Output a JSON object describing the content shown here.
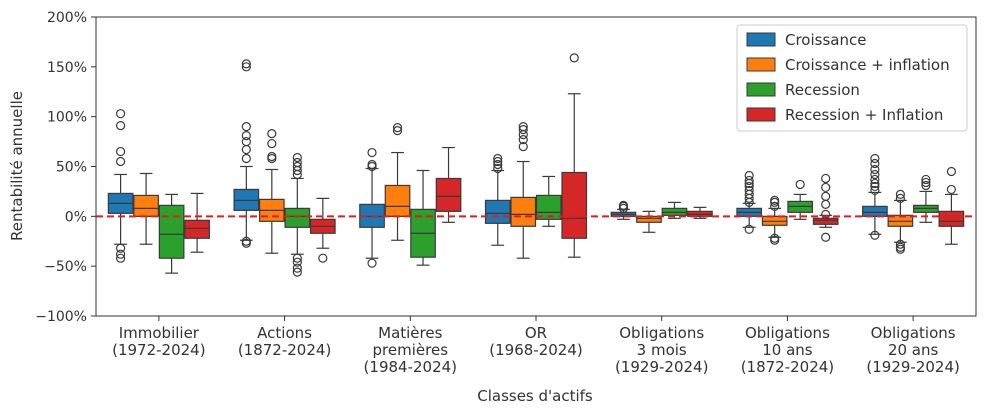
{
  "chart_data": {
    "type": "boxplot",
    "xlabel": "Classes d'actifs",
    "ylabel": "Rentabilité annuelle",
    "ylim": [
      -100,
      200
    ],
    "y_ticks": [
      -100,
      -50,
      0,
      50,
      100,
      150,
      200
    ],
    "y_tick_labels": [
      "−100%",
      "−50%",
      "0%",
      "50%",
      "100%",
      "150%",
      "200%"
    ],
    "reference_line": {
      "y": 0,
      "color": "#e41a1c",
      "style": "dashed"
    },
    "legend_position": "top-right",
    "categories": [
      {
        "lines": [
          "Immobilier",
          "(1972-2024)"
        ]
      },
      {
        "lines": [
          "Actions",
          "(1872-2024)"
        ]
      },
      {
        "lines": [
          "Matières",
          "premières",
          "(1984-2024)"
        ]
      },
      {
        "lines": [
          "OR",
          "(1968-2024)"
        ]
      },
      {
        "lines": [
          "Obligations",
          "3 mois",
          "(1929-2024)"
        ]
      },
      {
        "lines": [
          "Obligations",
          "10 ans",
          "(1872-2024)"
        ]
      },
      {
        "lines": [
          "Obligations",
          "20 ans",
          "(1929-2024)"
        ]
      }
    ],
    "series": [
      {
        "name": "Croissance",
        "color": "#1f77b4",
        "boxes": [
          {
            "whislo": -28,
            "q1": 3,
            "med": 13,
            "q3": 23,
            "whishi": 42,
            "fliers": [
              -32,
              -38,
              -42,
              55,
              65,
              91,
              103
            ]
          },
          {
            "whislo": -24,
            "q1": 6,
            "med": 16,
            "q3": 27,
            "whishi": 50,
            "fliers": [
              -25,
              -27,
              58,
              67,
              75,
              81,
              90,
              150,
              153
            ]
          },
          {
            "whislo": -42,
            "q1": -11,
            "med": 0,
            "q3": 12,
            "whishi": 48,
            "fliers": [
              -47,
              50,
              52,
              64
            ]
          },
          {
            "whislo": -29,
            "q1": -7,
            "med": 3,
            "q3": 16,
            "whishi": 46,
            "fliers": [
              48,
              52,
              55,
              58
            ]
          },
          {
            "whislo": -3,
            "q1": 0,
            "med": 2,
            "q3": 4,
            "whishi": 7,
            "fliers": [
              8,
              10,
              11
            ]
          },
          {
            "whislo": -11,
            "q1": 0,
            "med": 4,
            "q3": 8,
            "whishi": 13,
            "fliers": [
              -13,
              14,
              18,
              22,
              26,
              30,
              33,
              36,
              41
            ]
          },
          {
            "whislo": -18,
            "q1": 0,
            "med": 4,
            "q3": 10,
            "whishi": 24,
            "fliers": [
              -19,
              26,
              30,
              33,
              37,
              42,
              47,
              53,
              58
            ]
          }
        ]
      },
      {
        "name": "Croissance + inflation",
        "color": "#ff7f0e",
        "boxes": [
          {
            "whislo": -28,
            "q1": 0,
            "med": 8,
            "q3": 21,
            "whishi": 43,
            "fliers": []
          },
          {
            "whislo": -37,
            "q1": -5,
            "med": 6,
            "q3": 17,
            "whishi": 47,
            "fliers": [
              58,
              60,
              73,
              83
            ]
          },
          {
            "whislo": -24,
            "q1": 0,
            "med": 10,
            "q3": 31,
            "whishi": 64,
            "fliers": [
              86,
              89
            ]
          },
          {
            "whislo": -42,
            "q1": -10,
            "med": 2,
            "q3": 19,
            "whishi": 55,
            "fliers": [
              70,
              77,
              82,
              87,
              90
            ]
          },
          {
            "whislo": -16,
            "q1": -6,
            "med": -2,
            "q3": 0,
            "whishi": 5,
            "fliers": []
          },
          {
            "whislo": -21,
            "q1": -9,
            "med": -5,
            "q3": 0,
            "whishi": 8,
            "fliers": [
              -22,
              -24,
              10,
              14,
              16
            ]
          },
          {
            "whislo": -26,
            "q1": -10,
            "med": -5,
            "q3": 1,
            "whishi": 16,
            "fliers": [
              -28,
              -31,
              -33,
              18,
              22
            ]
          }
        ]
      },
      {
        "name": "Recession",
        "color": "#2ca02c",
        "boxes": [
          {
            "whislo": -57,
            "q1": -42,
            "med": -18,
            "q3": 11,
            "whishi": 22,
            "fliers": []
          },
          {
            "whislo": -38,
            "q1": -11,
            "med": 0,
            "q3": 8,
            "whishi": 38,
            "fliers": [
              -42,
              -46,
              -52,
              -56,
              42,
              46,
              50,
              54,
              59
            ]
          },
          {
            "whislo": -49,
            "q1": -41,
            "med": -17,
            "q3": 7,
            "whishi": 46,
            "fliers": []
          },
          {
            "whislo": -10,
            "q1": -3,
            "med": 4,
            "q3": 21,
            "whishi": 40,
            "fliers": []
          },
          {
            "whislo": -2,
            "q1": 1,
            "med": 4,
            "q3": 8,
            "whishi": 14,
            "fliers": []
          },
          {
            "whislo": -3,
            "q1": 4,
            "med": 10,
            "q3": 15,
            "whishi": 22,
            "fliers": [
              32
            ]
          },
          {
            "whislo": -6,
            "q1": 4,
            "med": 8,
            "q3": 11,
            "whishi": 25,
            "fliers": [
              31,
              34,
              37
            ]
          }
        ]
      },
      {
        "name": "Recession + Inflation",
        "color": "#d62728",
        "boxes": [
          {
            "whislo": -36,
            "q1": -22,
            "med": -12,
            "q3": -4,
            "whishi": 23,
            "fliers": []
          },
          {
            "whislo": -32,
            "q1": -17,
            "med": -10,
            "q3": -3,
            "whishi": 18,
            "fliers": [
              -42
            ]
          },
          {
            "whislo": -6,
            "q1": 5,
            "med": 20,
            "q3": 38,
            "whishi": 69,
            "fliers": []
          },
          {
            "whislo": -41,
            "q1": -22,
            "med": -2,
            "q3": 44,
            "whishi": 123,
            "fliers": [
              159
            ]
          },
          {
            "whislo": -2,
            "q1": 0,
            "med": 2,
            "q3": 5,
            "whishi": 9,
            "fliers": []
          },
          {
            "whislo": -11,
            "q1": -8,
            "med": -4,
            "q3": -2,
            "whishi": 1,
            "fliers": [
              -21,
              2,
              12,
              20,
              29,
              38
            ]
          },
          {
            "whislo": -28,
            "q1": -10,
            "med": -5,
            "q3": 5,
            "whishi": 22,
            "fliers": [
              27,
              45
            ]
          }
        ]
      }
    ]
  }
}
